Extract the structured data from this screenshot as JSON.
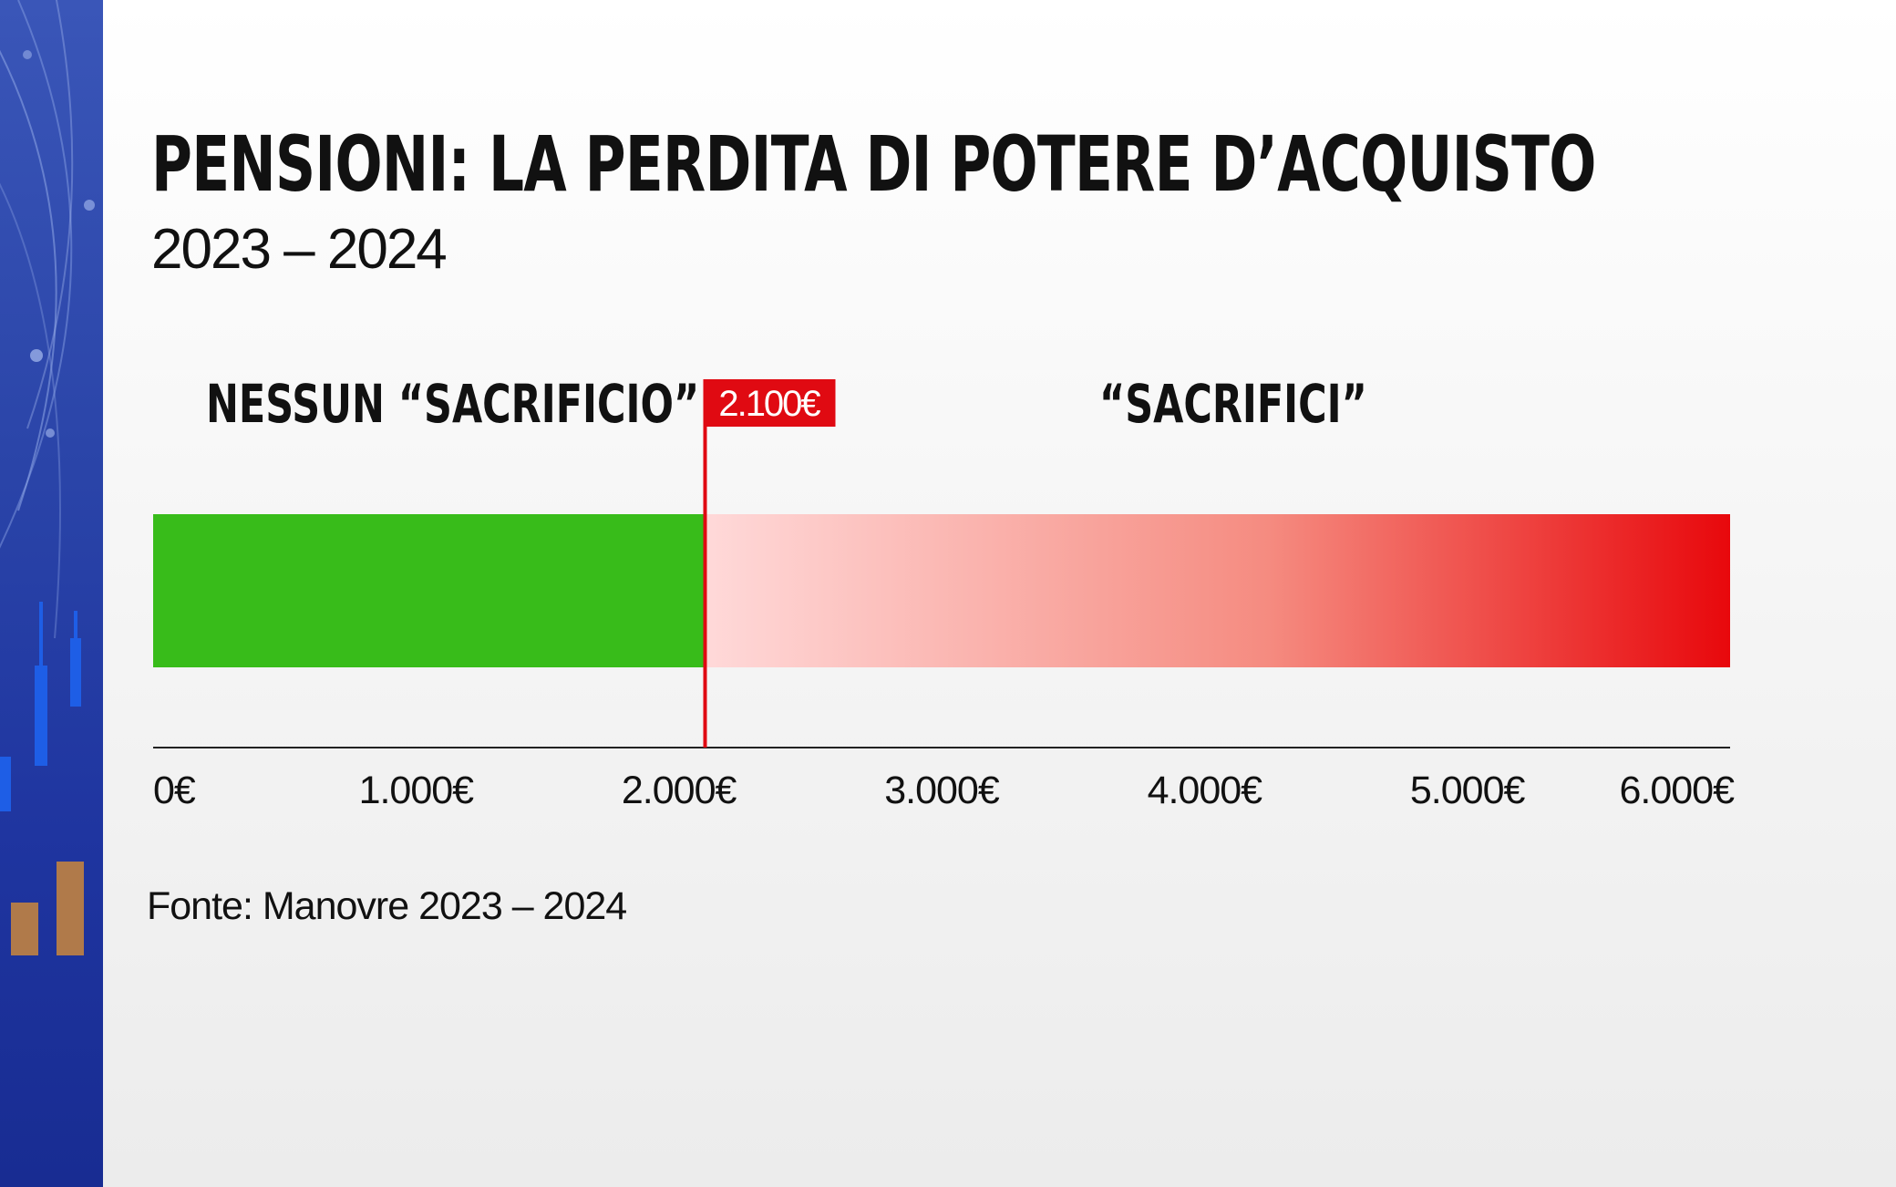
{
  "title": "PENSIONI: LA PERDITA DI POTERE D’ACQUISTO",
  "subtitle": "2023 – 2024",
  "zones": {
    "left_label": "NESSUN “SACRIFICIO”",
    "right_label": "“SACRIFICI”"
  },
  "source": "Fonte: Manovre 2023 – 2024",
  "colors": {
    "green_zone": "#38bc1a",
    "red_light": "#ffd9d9",
    "red_mid": "#f58b80",
    "red_full": "#e8080c",
    "threshold": "#e00a12",
    "axis": "#222222",
    "side_strip": "#2a44a8"
  },
  "chart_data": {
    "type": "bar",
    "xlim": [
      0,
      6000
    ],
    "ticks": [
      0,
      1000,
      2000,
      3000,
      4000,
      5000,
      6000
    ],
    "tick_labels": [
      "0€",
      "1.000€",
      "2.000€",
      "3.000€",
      "4.000€",
      "5.000€",
      "6.000€"
    ],
    "threshold": 2100,
    "threshold_label": "2.100€",
    "segments": [
      {
        "label": "NESSUN “SACRIFICIO”",
        "start": 0,
        "end": 2100,
        "color": "#38bc1a"
      },
      {
        "label": "“SACRIFICI”",
        "start": 2100,
        "end": 6000,
        "color": "gradient"
      }
    ]
  }
}
